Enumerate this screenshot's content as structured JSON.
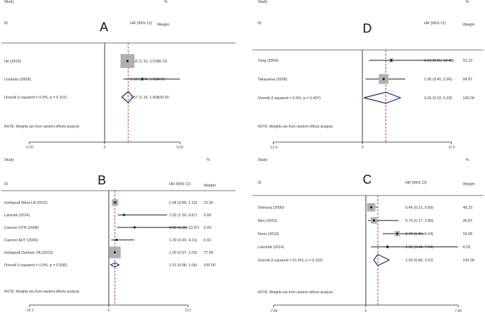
{
  "chart_data": [
    {
      "type": "forest",
      "panel_label": "A",
      "headers": {
        "study": "Study",
        "id": "ID",
        "hr": "HR (95% CI)",
        "pct": "%",
        "weight": "Weight"
      },
      "studies": [
        {
          "name": "He (2015)",
          "hr": 1.52,
          "lo": 1.16,
          "hi": 2.01,
          "hr_text": "1.52 (1.16, 2.01)",
          "weight": 95.19,
          "weight_text": "95.19"
        },
        {
          "name": "Lissbrán (2009)",
          "hr": 2.5,
          "lo": 1.24,
          "hi": 5.02,
          "hr_text": "2.50 (1.24, 5.02)",
          "weight": 4.81,
          "weight_text": "4.81"
        }
      ],
      "overall": {
        "label": "Overall (I-squared = 0.0%, p = 0.321)",
        "hr": 1.57,
        "lo": 1.15,
        "hi": 1.9,
        "hr_text": "1.57 (1.15, 1.90)",
        "weight_text": "100.00"
      },
      "note": "NOTE: Weights are from random effects analysis",
      "axis": {
        "min": -5.02,
        "max": 5.02,
        "ticks": [
          "-5.02",
          "0",
          "5.02"
        ]
      }
    },
    {
      "type": "forest",
      "panel_label": "D",
      "headers": {
        "study": "Study",
        "id": "ID",
        "hr": "HR (95% CI)",
        "pct": "%",
        "weight": "Weight"
      },
      "studies": [
        {
          "name": "Yang (2004)",
          "hr": 4.03,
          "lo": 0.95,
          "hi": 12.43,
          "hr_text": "4.03 (0.95, 12.43)",
          "weight": 15.13,
          "weight_text": "15.13"
        },
        {
          "name": "Takayama (2008)",
          "hr": 2.96,
          "lo": 0.45,
          "hi": 5.96,
          "hr_text": "2.96 (0.45, 5.96)",
          "weight": 84.87,
          "weight_text": "84.87"
        }
      ],
      "overall": {
        "label": "Overall (I-squared = 0.0%, p = 0.497)",
        "hr": 3.26,
        "lo": 0.22,
        "hi": 5.29,
        "hr_text": "3.26 (0.22, 5.29)",
        "weight_text": "100.00"
      },
      "note": "NOTE: Weights are from random effects analysis",
      "axis": {
        "min": -12.4,
        "max": 12.4,
        "ticks": [
          "-12.4",
          "0",
          "12.4"
        ]
      }
    },
    {
      "type": "forest",
      "panel_label": "B",
      "headers": {
        "study": "Study",
        "id": "ID",
        "hr": "HR (95% CI)",
        "pct": "%",
        "weight": "Weight"
      },
      "studies": [
        {
          "name": "Gollapudi West LA (2012)",
          "hr": 1.04,
          "lo": 0.89,
          "hi": 1.1,
          "hr_text": "1.04 (0.89, 1.10)",
          "weight": 22.92,
          "weight_text": "22.92"
        },
        {
          "name": "Lanzotti (2014)",
          "hr": 2.53,
          "lo": 1.5,
          "hi": 9.67,
          "hr_text": "2.53 (1.50, 9.67)",
          "weight": 0.0,
          "weight_text": "0.00"
        },
        {
          "name": "Cannon OTR (2008)",
          "hr": 4.26,
          "lo": 1.39,
          "hi": 13.07,
          "hr_text": "4.26 (1.39, 13.07)",
          "weight": 0.0,
          "weight_text": "0.00"
        },
        {
          "name": "Cannon ADT (2009)",
          "hr": 1.29,
          "lo": 0.4,
          "hi": 4.21,
          "hr_text": "1.29 (0.40, 4.21)",
          "weight": 0.02,
          "weight_text": "0.02"
        },
        {
          "name": "Gollapudi Durham VA (2013)",
          "hr": 1.0,
          "lo": 0.97,
          "hi": 1.03,
          "hr_text": "1.00 (0.97, 1.03)",
          "weight": 77.05,
          "weight_text": "77.05"
        }
      ],
      "overall": {
        "label": "Overall (I-squared = 0.0%, p = 0.696)",
        "hr": 1.01,
        "lo": 0.98,
        "hi": 1.04,
        "hr_text": "1.01 (0.98, 1.04)",
        "weight_text": "100.00"
      },
      "note": "NOTE: Weights are from random effects analysis",
      "axis": {
        "min": -13.1,
        "max": 13.1,
        "ticks": [
          "-13.1",
          "0",
          "13.1"
        ]
      }
    },
    {
      "type": "forest",
      "panel_label": "C",
      "headers": {
        "study": "Study",
        "id": "ID",
        "hr": "HR (95% CI)",
        "pct": "%",
        "weight": "Weight"
      },
      "studies": [
        {
          "name": "Shimura (2000)",
          "hr": 0.46,
          "lo": 0.21,
          "hi": 0.99,
          "hr_text": "0.46 (0.21, 0.99)",
          "weight": 48.15,
          "weight_text": "48.15"
        },
        {
          "name": "Alev (2015)",
          "hr": 0.7,
          "lo": 0.17,
          "hi": 2.8,
          "hr_text": "0.70 (0.17, 2.80)",
          "weight": 26.87,
          "weight_text": "26.87"
        },
        {
          "name": "Norio (2010)",
          "hr": 2.7,
          "lo": 1.45,
          "hi": 5.04,
          "hr_text": "2.70 (1.45, 5.04)",
          "weight": 18.95,
          "weight_text": "18.95"
        },
        {
          "name": "Lanciotti (2014)",
          "hr": 1.86,
          "lo": 0.44,
          "hi": 7.94,
          "hr_text": "1.86 (0.44, 7.94)",
          "weight": 6.03,
          "weight_text": "6.03"
        }
      ],
      "overall": {
        "label": "Overall (I-squared = 61.6%, p = 0.102)",
        "hr": 1.03,
        "lo": 0.86,
        "hi": 2.01,
        "hr_text": "1.03 (0.86, 2.01)",
        "weight_text": "100.00"
      },
      "note": "NOTE: Weights are from random effects analysis",
      "axis": {
        "min": -7.94,
        "max": 7.94,
        "ticks": [
          "-7.94",
          "0",
          "7.94"
        ]
      }
    }
  ]
}
